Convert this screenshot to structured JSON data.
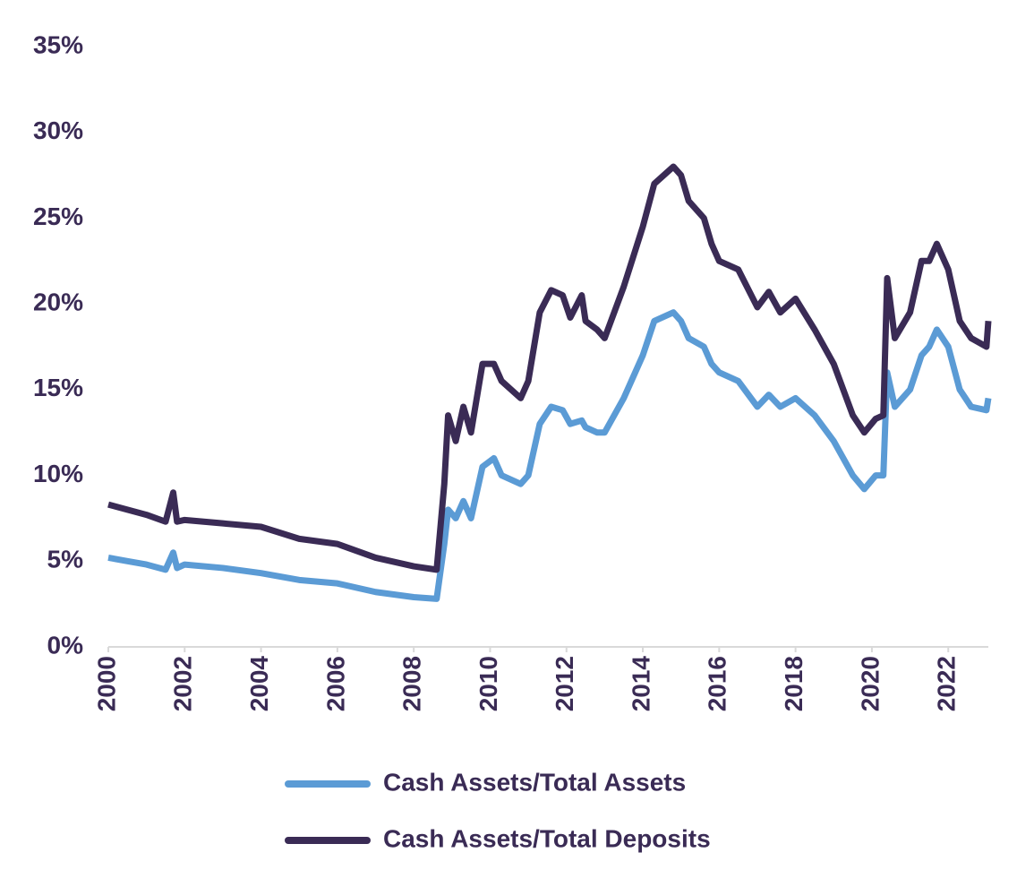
{
  "chart_data": {
    "type": "line",
    "x": [
      2000,
      2000.5,
      2001,
      2001.5,
      2001.7,
      2001.8,
      2002,
      2003,
      2004,
      2005,
      2006,
      2007,
      2008,
      2008.6,
      2008.8,
      2008.9,
      2009.1,
      2009.3,
      2009.5,
      2009.8,
      2010.1,
      2010.3,
      2010.8,
      2011,
      2011.3,
      2011.6,
      2011.9,
      2012.1,
      2012.4,
      2012.5,
      2012.8,
      2013,
      2013.5,
      2014,
      2014.3,
      2014.8,
      2015,
      2015.2,
      2015.6,
      2015.8,
      2016,
      2016.5,
      2017,
      2017.3,
      2017.6,
      2018,
      2018.5,
      2019,
      2019.5,
      2019.8,
      2020.1,
      2020.3,
      2020.4,
      2020.6,
      2021,
      2021.3,
      2021.5,
      2021.7,
      2022,
      2022.3,
      2022.6,
      2023,
      2023.05
    ],
    "series": [
      {
        "name": "Cash Assets/Total Assets",
        "color": "#5b9bd5",
        "values": [
          5.2,
          5.0,
          4.8,
          4.5,
          5.5,
          4.6,
          4.8,
          4.6,
          4.3,
          3.9,
          3.7,
          3.2,
          2.9,
          2.8,
          6.0,
          8.0,
          7.5,
          8.5,
          7.5,
          10.5,
          11.0,
          10.0,
          9.5,
          10.0,
          13.0,
          14.0,
          13.8,
          13.0,
          13.2,
          12.8,
          12.5,
          12.5,
          14.5,
          17.0,
          19.0,
          19.5,
          19.0,
          18.0,
          17.5,
          16.5,
          16.0,
          15.5,
          14.0,
          14.7,
          14.0,
          14.5,
          13.5,
          12.0,
          10.0,
          9.2,
          10.0,
          10.0,
          16.0,
          14.0,
          15.0,
          17.0,
          17.5,
          18.5,
          17.5,
          15.0,
          14.0,
          13.8,
          14.5
        ]
      },
      {
        "name": "Cash Assets/Total Deposits",
        "color": "#3a2b55",
        "values": [
          8.3,
          8.0,
          7.7,
          7.3,
          9.0,
          7.3,
          7.4,
          7.2,
          7.0,
          6.3,
          6.0,
          5.2,
          4.7,
          4.5,
          9.5,
          13.5,
          12.0,
          14.0,
          12.5,
          16.5,
          16.5,
          15.5,
          14.5,
          15.5,
          19.5,
          20.8,
          20.5,
          19.2,
          20.5,
          19.0,
          18.5,
          18.0,
          21.0,
          24.5,
          27.0,
          28.0,
          27.5,
          26.0,
          25.0,
          23.5,
          22.5,
          22.0,
          19.8,
          20.7,
          19.5,
          20.3,
          18.5,
          16.5,
          13.5,
          12.5,
          13.3,
          13.5,
          21.5,
          18.0,
          19.5,
          22.5,
          22.5,
          23.5,
          22.0,
          19.0,
          18.0,
          17.5,
          19.0
        ]
      }
    ],
    "xlim": [
      2000,
      2023.05
    ],
    "xticks": [
      2000,
      2002,
      2004,
      2006,
      2008,
      2010,
      2012,
      2014,
      2016,
      2018,
      2020,
      2022
    ],
    "ylim": [
      0,
      35
    ],
    "yticks": [
      {
        "value": 0,
        "label": "0%"
      },
      {
        "value": 5,
        "label": "5%"
      },
      {
        "value": 10,
        "label": "10%"
      },
      {
        "value": 15,
        "label": "15%"
      },
      {
        "value": 20,
        "label": "20%"
      },
      {
        "value": 25,
        "label": "25%"
      },
      {
        "value": 30,
        "label": "30%"
      },
      {
        "value": 35,
        "label": "35%"
      }
    ],
    "grid": false
  }
}
